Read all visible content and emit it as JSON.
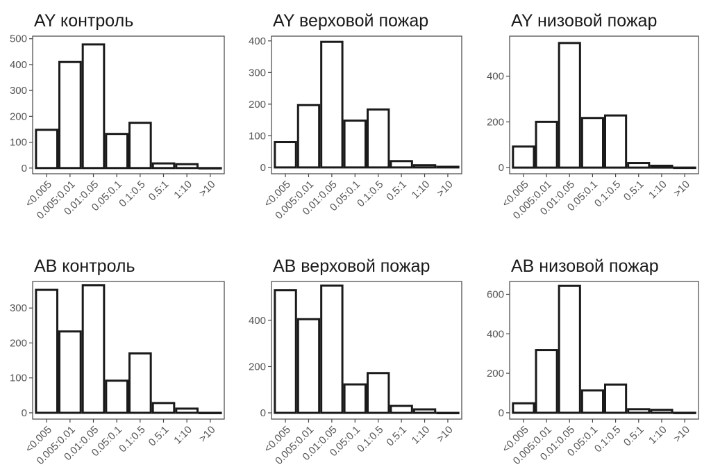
{
  "chart_data": [
    {
      "type": "bar",
      "title": "AY контроль",
      "categories": [
        "<0.005",
        "0.005:0.01",
        "0.01:0.05",
        "0.05:0.1",
        "0.1:0.5",
        "0.5:1",
        "1:10",
        ">10"
      ],
      "values": [
        148,
        410,
        478,
        132,
        175,
        18,
        15,
        0
      ],
      "ylim": [
        -22,
        510
      ],
      "yticks": [
        0,
        100,
        200,
        300,
        400,
        500
      ],
      "ytick_labels": [
        "0",
        "100",
        "200",
        "300",
        "400",
        "500"
      ]
    },
    {
      "type": "bar",
      "title": "AY верховой пожар",
      "categories": [
        "<0.005",
        "0.005:0.01",
        "0.01:0.05",
        "0.05:0.1",
        "0.1:0.5",
        "0.5:1",
        "1:10",
        ">10"
      ],
      "values": [
        80,
        197,
        397,
        148,
        183,
        20,
        7,
        2
      ],
      "ylim": [
        -20,
        415
      ],
      "yticks": [
        0,
        100,
        200,
        300,
        400
      ],
      "ytick_labels": [
        "0",
        "100",
        "200",
        "300",
        "400"
      ]
    },
    {
      "type": "bar",
      "title": "AY низовой пожар",
      "categories": [
        "<0.005",
        "0.005:0.01",
        "0.01:0.05",
        "0.05:0.1",
        "0.1:0.5",
        "0.5:1",
        "1:10",
        ">10"
      ],
      "values": [
        92,
        200,
        545,
        217,
        228,
        20,
        8,
        0
      ],
      "ylim": [
        -27,
        575
      ],
      "yticks": [
        0,
        200,
        400
      ],
      "ytick_labels": [
        "0",
        "200",
        "400"
      ]
    },
    {
      "type": "bar",
      "title": "AB контроль",
      "categories": [
        "<0.005",
        "0.005:0.01",
        "0.01:0.05",
        "0.05:0.1",
        "0.1:0.5",
        "0.5:1",
        "1:10",
        ">10"
      ],
      "values": [
        352,
        233,
        365,
        92,
        170,
        28,
        12,
        0
      ],
      "ylim": [
        -18,
        376
      ],
      "yticks": [
        0,
        100,
        200,
        300
      ],
      "ytick_labels": [
        "0",
        "100",
        "200",
        "300"
      ]
    },
    {
      "type": "bar",
      "title": "AB верховой пожар",
      "categories": [
        "<0.005",
        "0.005:0.01",
        "0.01:0.05",
        "0.05:0.1",
        "0.1:0.5",
        "0.5:1",
        "1:10",
        ">10"
      ],
      "values": [
        530,
        405,
        550,
        123,
        172,
        30,
        15,
        0
      ],
      "ylim": [
        -27,
        568
      ],
      "yticks": [
        0,
        200,
        400
      ],
      "ytick_labels": [
        "0",
        "200",
        "400"
      ]
    },
    {
      "type": "bar",
      "title": "AB низовой пожар",
      "categories": [
        "<0.005",
        "0.005:0.01",
        "0.01:0.05",
        "0.05:0.1",
        "0.1:0.5",
        "0.5:1",
        "1:10",
        ">10"
      ],
      "values": [
        48,
        318,
        643,
        113,
        143,
        18,
        15,
        0
      ],
      "ylim": [
        -32,
        665
      ],
      "yticks": [
        0,
        200,
        400,
        600
      ],
      "ytick_labels": [
        "0",
        "200",
        "400",
        "600"
      ]
    }
  ]
}
